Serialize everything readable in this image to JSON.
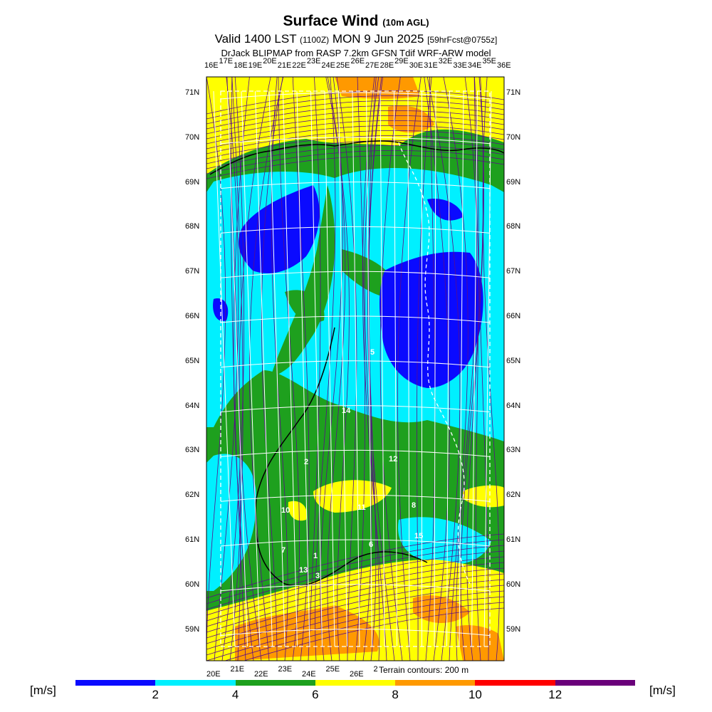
{
  "title": {
    "main": "Surface Wind",
    "main_suffix": "(10m AGL)",
    "valid_prefix": "Valid 1400 LST",
    "valid_utc": "(1100Z)",
    "valid_date": "MON 9 Jun 2025",
    "forecast": "[59hrFcst@0755z]",
    "model": "DrJack BLIPMAP from RASP 7.2km GFSN Tdif WRF-ARW model"
  },
  "lat_labels": [
    "71N",
    "70N",
    "69N",
    "68N",
    "67N",
    "66N",
    "65N",
    "64N",
    "63N",
    "62N",
    "61N",
    "60N",
    "59N"
  ],
  "lon_labels_top": [
    "16E",
    "17E",
    "18E",
    "19E",
    "20E",
    "21E",
    "22E",
    "23E",
    "24E",
    "25E",
    "26E",
    "27E",
    "28E",
    "29E",
    "30E",
    "31E",
    "32E",
    "33E",
    "34E",
    "35E",
    "36E"
  ],
  "lon_labels_bottom": [
    "20E",
    "21E",
    "22E",
    "23E",
    "24E",
    "25E",
    "26E",
    "2"
  ],
  "terrain_note": "Terrain contours: 200 m",
  "colorbar": {
    "units": "[m/s]",
    "ticks": [
      "2",
      "4",
      "6",
      "8",
      "10",
      "12"
    ],
    "colors": [
      "#0a0aff",
      "#00f0ff",
      "#1ea01e",
      "#ffff00",
      "#ff9900",
      "#ff0000",
      "#6a007a"
    ]
  },
  "wind_labels": [
    "5",
    "14",
    "2",
    "12",
    "10",
    "11",
    "8",
    "15",
    "7",
    "6",
    "1",
    "13",
    "3"
  ],
  "legend_colors": {
    "lt2": "#0a0aff",
    "2to4": "#00f0ff",
    "4to6": "#1ea01e",
    "6to8": "#ffff00",
    "8to10": "#ff9900"
  }
}
